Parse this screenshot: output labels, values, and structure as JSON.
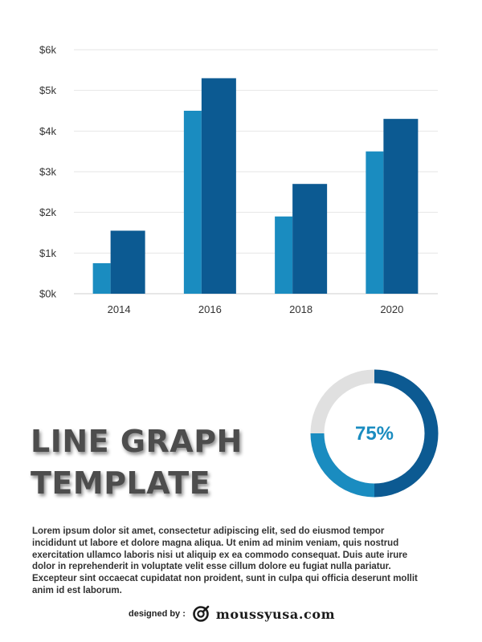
{
  "chart_data": {
    "type": "bar",
    "categories": [
      "2014",
      "2016",
      "2018",
      "2020"
    ],
    "series": [
      {
        "values": [
          0.75,
          4.5,
          1.9,
          3.5
        ]
      },
      {
        "values": [
          1.55,
          5.3,
          2.7,
          4.3
        ]
      }
    ],
    "yticks": [
      "$0k",
      "$1k",
      "$2k",
      "$3k",
      "$4k",
      "$5k",
      "$6k"
    ],
    "ylim": [
      0,
      6
    ],
    "grid": true,
    "colors": [
      "#1a8cc0",
      "#0c5a92"
    ]
  },
  "donut": {
    "percent": 75,
    "label": "75%",
    "colors": {
      "filled": "#0c5a92",
      "accent": "#1a8cc0",
      "track": "#e0e0e0",
      "text": "#1a8cc0"
    }
  },
  "title": {
    "line1": "LINE GRAPH",
    "line2": "TEMPLATE"
  },
  "body": "Lorem ipsum dolor sit amet, consectetur adipiscing elit, sed do eiusmod tempor incididunt ut labore et dolore magna aliqua. Ut enim ad minim veniam, quis nostrud exercitation ullamco laboris nisi ut aliquip ex ea commodo consequat. Duis aute irure dolor in reprehenderit in voluptate velit esse cillum dolore eu fugiat nulla pariatur. Excepteur sint occaecat cupidatat non proident, sunt in culpa qui officia deserunt mollit anim id est laborum.",
  "footer": {
    "designed_by": "designed by :",
    "site": "moussyusa.com",
    "logo_icon": "moussyusa-logo-icon"
  }
}
